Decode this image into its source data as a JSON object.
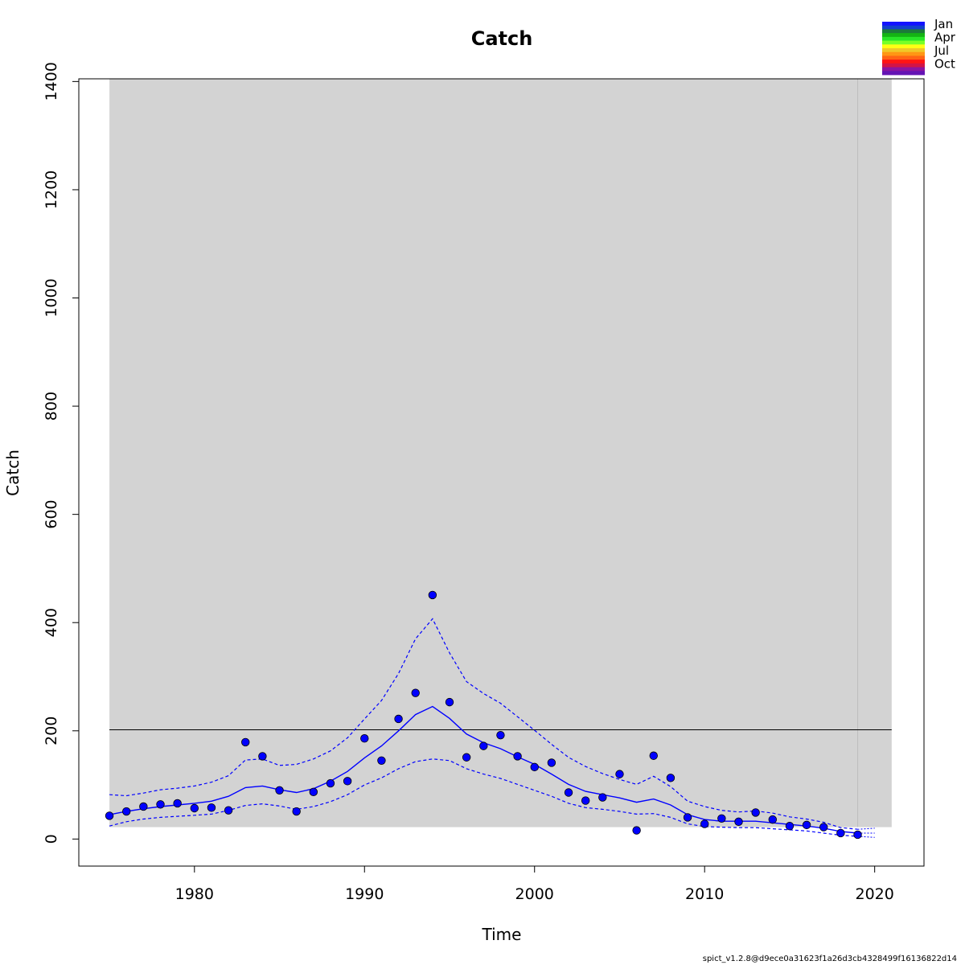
{
  "chart_data": {
    "type": "scatter",
    "title": "Catch",
    "xlabel": "Time",
    "ylabel": "Catch",
    "xlim": [
      1973.2,
      2022.9
    ],
    "ylim": [
      -50,
      1405
    ],
    "x_ticks": [
      1980,
      1990,
      2000,
      2010,
      2020
    ],
    "y_ticks": [
      0,
      200,
      400,
      600,
      800,
      1000,
      1200,
      1400
    ],
    "shaded_region": {
      "x": [
        1975,
        2021
      ],
      "y": [
        22,
        1405
      ],
      "color": "#d3d3d3"
    },
    "hline": {
      "y": 202,
      "x": [
        1975,
        2021
      ]
    },
    "vline": {
      "x": 2019
    },
    "observed": {
      "name": "observed",
      "color": "#0000ff",
      "x": [
        1975,
        1976,
        1977,
        1978,
        1979,
        1980,
        1981,
        1982,
        1983,
        1984,
        1985,
        1986,
        1987,
        1988,
        1989,
        1990,
        1991,
        1992,
        1993,
        1994,
        1995,
        1996,
        1997,
        1998,
        1999,
        2000,
        2001,
        2002,
        2003,
        2004,
        2005,
        2006,
        2007,
        2008,
        2009,
        2010,
        2011,
        2012,
        2013,
        2014,
        2015,
        2016,
        2017,
        2018,
        2019
      ],
      "y": [
        43,
        51,
        60,
        64,
        66,
        57,
        58,
        53,
        179,
        153,
        90,
        51,
        87,
        103,
        107,
        186,
        145,
        222,
        270,
        451,
        253,
        151,
        172,
        192,
        153,
        133,
        141,
        86,
        71,
        77,
        120,
        16,
        154,
        113,
        40,
        28,
        38,
        32,
        49,
        36,
        24,
        26,
        22,
        11,
        8
      ]
    },
    "fitted": {
      "x": [
        1975,
        1976,
        1977,
        1978,
        1979,
        1980,
        1981,
        1982,
        1983,
        1984,
        1985,
        1986,
        1987,
        1988,
        1989,
        1990,
        1991,
        1992,
        1993,
        1994,
        1995,
        1996,
        1997,
        1998,
        1999,
        2000,
        2001,
        2002,
        2003,
        2004,
        2005,
        2006,
        2007,
        2008,
        2009,
        2010,
        2011,
        2012,
        2013,
        2014,
        2015,
        2016,
        2017,
        2018,
        2019
      ],
      "y": [
        45,
        51,
        56,
        60,
        63,
        66,
        70,
        79,
        95,
        98,
        91,
        86,
        93,
        107,
        125,
        150,
        172,
        200,
        230,
        245,
        223,
        194,
        178,
        167,
        152,
        138,
        120,
        101,
        88,
        82,
        76,
        68,
        74,
        63,
        45,
        36,
        33,
        33,
        33,
        30,
        27,
        24,
        20,
        14,
        11
      ]
    },
    "ci_upper": {
      "x": [
        1975,
        1976,
        1977,
        1978,
        1979,
        1980,
        1981,
        1982,
        1983,
        1984,
        1985,
        1986,
        1987,
        1988,
        1989,
        1990,
        1991,
        1992,
        1993,
        1994,
        1995,
        1996,
        1997,
        1998,
        1999,
        2000,
        2001,
        2002,
        2003,
        2004,
        2005,
        2006,
        2007,
        2008,
        2009,
        2010,
        2011,
        2012,
        2013,
        2014,
        2015,
        2016,
        2017,
        2018,
        2019
      ],
      "y": [
        82,
        80,
        85,
        91,
        94,
        98,
        105,
        117,
        146,
        148,
        136,
        138,
        148,
        163,
        187,
        222,
        256,
        306,
        370,
        407,
        344,
        291,
        269,
        251,
        226,
        201,
        175,
        151,
        134,
        121,
        110,
        101,
        116,
        97,
        70,
        60,
        53,
        50,
        52,
        48,
        41,
        37,
        31,
        21,
        18
      ]
    },
    "ci_lower": {
      "x": [
        1975,
        1976,
        1977,
        1978,
        1979,
        1980,
        1981,
        1982,
        1983,
        1984,
        1985,
        1986,
        1987,
        1988,
        1989,
        1990,
        1991,
        1992,
        1993,
        1994,
        1995,
        1996,
        1997,
        1998,
        1999,
        2000,
        2001,
        2002,
        2003,
        2004,
        2005,
        2006,
        2007,
        2008,
        2009,
        2010,
        2011,
        2012,
        2013,
        2014,
        2015,
        2016,
        2017,
        2018,
        2019
      ],
      "y": [
        24,
        32,
        37,
        40,
        42,
        44,
        46,
        53,
        62,
        65,
        61,
        55,
        60,
        69,
        82,
        100,
        113,
        130,
        143,
        148,
        145,
        130,
        120,
        112,
        101,
        90,
        79,
        66,
        58,
        55,
        51,
        46,
        47,
        40,
        28,
        23,
        22,
        21,
        21,
        19,
        17,
        15,
        11,
        7,
        5
      ]
    },
    "forecast": {
      "x": [
        2019,
        2020
      ],
      "fitted": [
        11,
        11
      ],
      "upper": [
        18,
        20
      ],
      "lower": [
        5,
        3
      ]
    },
    "legend": {
      "position": "top-right",
      "entries": [
        "Jan",
        "Apr",
        "Jul",
        "Oct"
      ],
      "colors": [
        "#1212ff",
        "#1240cc",
        "#1c7a3a",
        "#14b414",
        "#28e628",
        "#78ff28",
        "#ffff14",
        "#f0c828",
        "#ff9614",
        "#ff6414",
        "#ff1414",
        "#d21446",
        "#8c14a0",
        "#6414b4"
      ]
    },
    "footer": "spict_v1.2.8@d9ece0a31623f1a26d3cb4328499f16136822d14"
  }
}
